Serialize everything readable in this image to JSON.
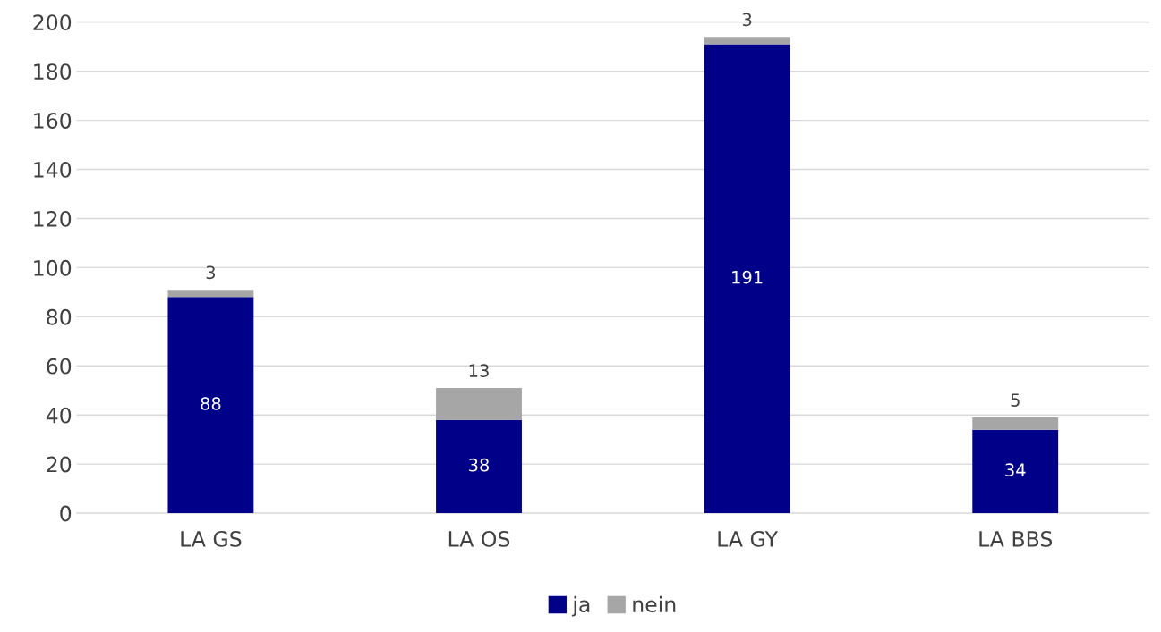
{
  "chart_data": {
    "type": "bar",
    "stacked": true,
    "categories": [
      "LA GS",
      "LA OS",
      "LA GY",
      "LA BBS"
    ],
    "series": [
      {
        "name": "ja",
        "color": "#000088",
        "values": [
          88,
          38,
          191,
          34
        ]
      },
      {
        "name": "nein",
        "color": "#a6a6a6",
        "values": [
          3,
          13,
          3,
          5
        ]
      }
    ],
    "ylim": [
      0,
      200
    ],
    "yticks": [
      0,
      20,
      40,
      60,
      80,
      100,
      120,
      140,
      160,
      180,
      200
    ],
    "grid": "y",
    "legend": "bottom",
    "data_labels": true
  }
}
